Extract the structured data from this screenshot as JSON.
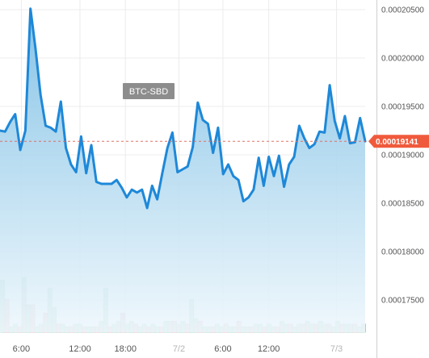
{
  "chart_data": {
    "type": "line",
    "title": "",
    "xlabel": "",
    "ylabel": "",
    "pair_label": "BTC-SBD",
    "last_price_label": "0.00019141",
    "ylim": [
      0.0001711,
      0.0002057
    ],
    "xlim": [
      0,
      86
    ],
    "y_ticks": [
      0.000175,
      0.00018,
      0.000185,
      0.00019,
      0.000195,
      0.0002,
      0.000205
    ],
    "y_tick_labels": [
      "0.00017500",
      "0.00018000",
      "0.00018500",
      "0.00019000",
      "0.00019500",
      "0.00020000",
      "0.00020500"
    ],
    "x_ticks": [
      0,
      16,
      28.4,
      43,
      55,
      67.5,
      86
    ],
    "x_tick_labels": [
      "6:00",
      "12:00",
      "18:00",
      "7/2",
      "6:00",
      "12:00",
      "7/3"
    ],
    "x_ticks_muted": [
      "7/2",
      "7/3"
    ],
    "series": [
      {
        "values": [
          0.0001925,
          0.0001924,
          0.0001934,
          0.0001942,
          0.0001905,
          0.0001925,
          0.0002051,
          0.000201,
          0.0001962,
          0.000193,
          0.0001928,
          0.0001924,
          0.0001955,
          0.0001907,
          0.000189,
          0.0001882,
          0.0001919,
          0.0001881,
          0.000191,
          0.0001872,
          0.000187,
          0.000187,
          0.000187,
          0.0001874,
          0.0001866,
          0.0001856,
          0.0001864,
          0.0001861,
          0.0001864,
          0.0001845,
          0.0001868,
          0.0001854,
          0.0001881,
          0.0001907,
          0.0001923,
          0.0001882,
          0.0001885,
          0.0001888,
          0.0001908,
          0.0001954,
          0.0001936,
          0.0001932,
          0.0001902,
          0.0001928,
          0.000188,
          0.000189,
          0.0001878,
          0.0001874,
          0.0001852,
          0.0001856,
          0.0001864,
          0.0001897,
          0.0001868,
          0.0001898,
          0.0001878,
          0.0001899,
          0.0001867,
          0.000189,
          0.0001898,
          0.000193,
          0.0001917,
          0.0001907,
          0.0001911,
          0.0001924,
          0.0001923,
          0.0001972,
          0.0001935,
          0.0001917,
          0.000194,
          0.0001912,
          0.0001913,
          0.0001938,
          0.0001914
        ]
      }
    ],
    "volume": [
      0.19,
      0.12,
      0.02,
      0.03,
      0.02,
      0.2,
      0.1,
      0.1,
      0.02,
      0.03,
      0.07,
      0.16,
      0.09,
      0.03,
      0.03,
      0.02,
      0.02,
      0.03,
      0.03,
      0.02,
      0.02,
      0.02,
      0.02,
      0.04,
      0.16,
      0.02,
      0.03,
      0.04,
      0.07,
      0.03,
      0.04,
      0.03,
      0.02,
      0.03,
      0.02,
      0.03,
      0.02,
      0.02,
      0.04,
      0.04,
      0.04,
      0.03,
      0.04,
      0.03,
      0.12,
      0.05,
      0.04,
      0.02,
      0.02,
      0.02,
      0.03,
      0.02,
      0.03,
      0.02,
      0.02,
      0.04,
      0.02,
      0.02,
      0.02,
      0.03,
      0.03,
      0.02,
      0.03,
      0.02,
      0.02,
      0.04,
      0.03,
      0.03,
      0.02,
      0.03,
      0.03,
      0.04,
      0.03,
      0.03,
      0.04,
      0.03,
      0.03,
      0.02,
      0.04,
      0.03,
      0.03,
      0.03,
      0.03,
      0.02,
      0.03
    ],
    "volume_overlay": [
      0.12,
      0.06,
      0.01,
      0.01,
      0.01,
      0.16,
      0.05,
      0.06,
      0.02,
      0.02,
      0.04,
      0.02,
      0.02,
      0.01,
      0.01,
      0.01,
      0.01,
      0.01,
      0.01,
      0.01,
      0.01,
      0.01,
      0.02,
      0.02,
      0.05,
      0.01,
      0.02,
      0.03,
      0.05,
      0.01,
      0.02,
      0.02,
      0.01,
      0.02,
      0.01,
      0.02,
      0.01,
      0.01,
      0.03,
      0.03,
      0.03,
      0.02,
      0.03,
      0.02,
      0.08,
      0.03,
      0.03,
      0.01,
      0.01,
      0.01,
      0.02,
      0.01,
      0.02,
      0.01,
      0.01,
      0.03,
      0.01,
      0.01,
      0.01,
      0.02,
      0.02,
      0.01,
      0.02,
      0.01,
      0.01,
      0.03,
      0.02,
      0.02,
      0.01,
      0.02,
      0.02,
      0.03,
      0.02,
      0.02,
      0.03,
      0.02,
      0.02,
      0.01,
      0.03,
      0.02,
      0.02,
      0.02,
      0.02,
      0.01,
      0.02
    ],
    "grid": true,
    "colors": {
      "line": "#1e88d8",
      "area_top": "#7fc0e5",
      "area_bottom": "#eef7fc",
      "price_line": "#e07060",
      "price_tag": "#f05a3c",
      "volume_up": "#a9d8c4",
      "volume_down": "#e9b7bd",
      "pair_badge": "#8d8d8d"
    }
  }
}
